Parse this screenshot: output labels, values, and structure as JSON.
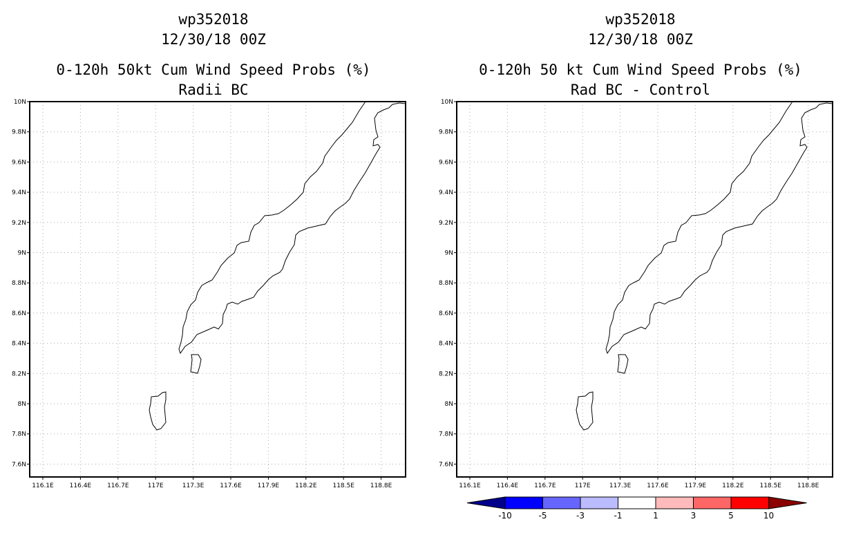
{
  "panels": [
    {
      "storm_id": "wp352018",
      "datetime": "12/30/18 00Z",
      "title": "0-120h 50kt Cum Wind Speed Probs (%)",
      "subtitle": "Radii BC"
    },
    {
      "storm_id": "wp352018",
      "datetime": "12/30/18 00Z",
      "title": "0-120h 50 kt Cum Wind Speed Probs (%)",
      "subtitle": "Rad BC - Control"
    }
  ],
  "map": {
    "lat_labels": [
      "10N",
      "9.8N",
      "9.6N",
      "9.4N",
      "9.2N",
      "9N",
      "8.8N",
      "8.6N",
      "8.4N",
      "8.2N",
      "8N",
      "7.8N",
      "7.6N"
    ],
    "lon_labels": [
      "116.1E",
      "116.4E",
      "116.7E",
      "117E",
      "117.3E",
      "117.6E",
      "117.9E",
      "118.2E",
      "118.5E",
      "118.8E"
    ]
  },
  "colorbar": {
    "labels": [
      "-10",
      "-5",
      "-3",
      "-1",
      "1",
      "3",
      "5",
      "10"
    ],
    "colors": [
      "#00008b",
      "#0000ff",
      "#6666ff",
      "#bbbbff",
      "#ffffff",
      "#ffbbbb",
      "#ff6666",
      "#ff0000",
      "#8b0000"
    ]
  }
}
